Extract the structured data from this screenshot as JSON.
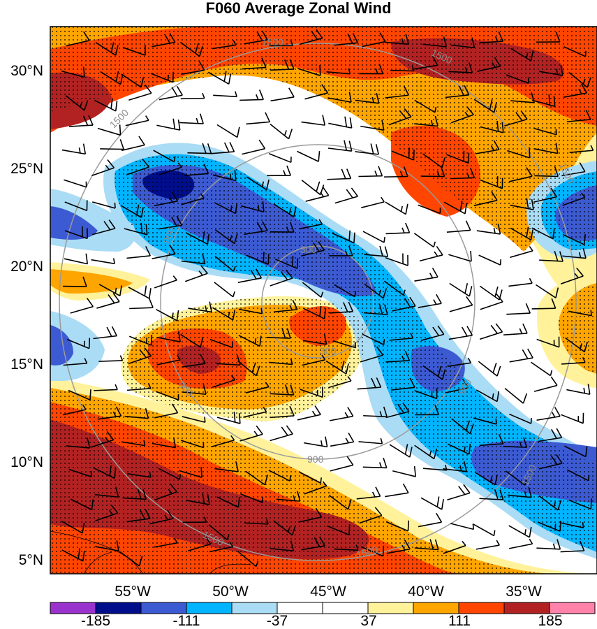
{
  "title": "F060 Average Zonal Wind",
  "lat_ticks": [
    "30°N",
    "25°N",
    "20°N",
    "15°N",
    "10°N",
    "5°N"
  ],
  "lon_ticks": [
    "55°W",
    "50°W",
    "45°W",
    "40°W",
    "35°W"
  ],
  "colorbar": {
    "colors": [
      "#9a32cd",
      "#000e8c",
      "#3c5ad2",
      "#00b4ff",
      "#aadcf5",
      "#ffffff",
      "#ffffff",
      "#fff29a",
      "#ffa500",
      "#ff4500",
      "#b22222",
      "#ff82ab"
    ],
    "labels": [
      "-185",
      "-111",
      "-37",
      "37",
      "111",
      "185"
    ]
  },
  "ring_labels": [
    "300",
    "300",
    "900",
    "900",
    "900",
    "900",
    "1500",
    "1500",
    "1500",
    "1500",
    "1500",
    "1500"
  ],
  "palette": {
    "deep_blue": "#000e8c",
    "blue": "#3c5ad2",
    "light_blue": "#00b4ff",
    "pale_blue": "#aadcf5",
    "yellow": "#fff29a",
    "orange": "#ffa500",
    "red_orange": "#ff4500",
    "dark_red": "#b22222",
    "ring_color": "#9a9a9a"
  }
}
